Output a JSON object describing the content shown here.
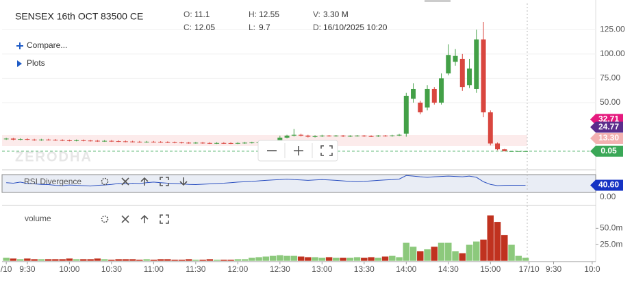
{
  "header": {
    "stats": [
      {
        "key": "O:",
        "value": 11.1
      },
      {
        "key": "C:",
        "value": 12.05
      },
      {
        "key": "H:",
        "value": 12.55
      },
      {
        "key": "L:",
        "value": 9.7
      },
      {
        "key": "V:",
        "value": "3.30 M"
      },
      {
        "key": "D:",
        "value": "16/10/2025 10:20"
      }
    ],
    "compare": "Compare...",
    "plots": "Plots",
    "axis_zero": "0.00"
  },
  "chart_data": [
    {
      "type": "candlestick",
      "title": "SENSEX 16th OCT 83500 CE",
      "watermark": "ZERODHA",
      "up_color": "#43a047",
      "down_color": "#d9463f",
      "x": [
        0,
        1,
        2,
        3,
        4,
        5,
        6,
        7,
        8,
        9,
        10,
        11,
        12,
        13,
        14,
        15,
        16,
        17,
        18,
        19,
        20,
        21,
        22,
        23,
        24,
        25,
        26,
        27,
        28,
        29,
        30,
        31,
        32,
        33,
        34,
        35,
        36,
        37,
        38,
        39,
        40,
        41,
        42,
        43,
        44,
        45,
        46,
        47,
        48,
        49,
        50,
        51,
        52,
        53,
        54,
        55,
        56,
        57,
        58,
        59,
        60,
        61,
        62,
        63,
        64,
        65,
        66,
        67,
        68,
        69,
        70,
        71,
        72,
        73,
        74
      ],
      "open": [
        12.5,
        13,
        12,
        12.5,
        12,
        11.5,
        12,
        11.8,
        11.5,
        11.2,
        11,
        11.3,
        11,
        10.8,
        10.5,
        10.7,
        10.4,
        10.2,
        10,
        9.8,
        9.5,
        9.8,
        9.6,
        9.4,
        9.2,
        9,
        8.8,
        8.6,
        8.8,
        8.5,
        8.3,
        8.5,
        8.4,
        8.2,
        8.5,
        8.8,
        9,
        9.2,
        9.5,
        9.8,
        14,
        16,
        17,
        16,
        15,
        15.5,
        16,
        15.8,
        16,
        15.5,
        15.8,
        16,
        15.6,
        15.5,
        16,
        15.8,
        16.2,
        18,
        54,
        50,
        45,
        64,
        50,
        80,
        92,
        95,
        68,
        64,
        115,
        40,
        8,
        2,
        0.05,
        0.05,
        0.05
      ],
      "high": [
        13.8,
        13.8,
        13.3,
        13.3,
        12.8,
        12.8,
        12.8,
        12.6,
        12.3,
        12,
        12.1,
        12.1,
        11.8,
        11.6,
        11.5,
        11.5,
        11.2,
        11,
        10.8,
        10.6,
        10.6,
        10.6,
        10.4,
        10.2,
        10,
        9.8,
        9.6,
        9.6,
        9.6,
        9.3,
        9.3,
        9.3,
        9.2,
        9.3,
        9.6,
        9.8,
        10,
        10.3,
        10.6,
        16,
        17,
        23,
        18,
        17,
        16.5,
        17,
        16.8,
        16.8,
        16.8,
        16.6,
        16.8,
        16.8,
        16.4,
        16.8,
        16.8,
        17,
        17.8,
        60,
        70,
        52,
        68,
        66,
        80,
        110,
        105,
        100,
        95,
        125,
        133,
        42,
        9,
        2.5,
        0.1,
        0.1,
        0.1
      ],
      "low": [
        11.7,
        11.2,
        11.2,
        11.2,
        10.7,
        10.7,
        11,
        10.7,
        10.4,
        10.2,
        10.2,
        10.2,
        10,
        9.7,
        9.7,
        9.6,
        9.4,
        9.2,
        9,
        8.7,
        8.7,
        8.8,
        8.6,
        8.4,
        8.2,
        8,
        7.8,
        7.8,
        7.7,
        7.5,
        7.5,
        7.6,
        7.4,
        7.4,
        7.7,
        8,
        8.2,
        8.4,
        8.7,
        9,
        13.2,
        15.2,
        15.2,
        14.2,
        14.2,
        14.7,
        15,
        15,
        14.7,
        14.7,
        15,
        14.8,
        14.7,
        14.7,
        15,
        15,
        15.4,
        15,
        50,
        38,
        42,
        48,
        48,
        78,
        88,
        62,
        65,
        60,
        35,
        6,
        1,
        0.05,
        0.05,
        0.05,
        0.05
      ],
      "close": [
        13,
        12,
        12.5,
        12,
        11.5,
        12,
        11.8,
        11.5,
        11.2,
        11,
        11.3,
        11,
        10.8,
        10.5,
        10.7,
        10.4,
        10.2,
        10,
        9.8,
        9.5,
        9.8,
        9.6,
        9.4,
        9.2,
        9,
        8.8,
        8.6,
        8.8,
        8.5,
        8.3,
        8.5,
        8.4,
        8.2,
        8.5,
        8.8,
        9,
        9.2,
        9.5,
        9.8,
        14,
        16,
        17,
        16,
        15,
        15.5,
        16,
        15.8,
        16,
        15.5,
        15.8,
        16,
        15.6,
        15.5,
        16,
        15.8,
        16.2,
        17,
        57,
        64,
        40,
        64,
        50,
        75,
        99,
        98,
        66,
        85,
        115,
        40,
        8,
        2,
        0.05,
        0.05,
        0.05,
        0.05
      ],
      "xlim": [
        -0.6,
        84
      ],
      "xticks": [
        {
          "value": 0,
          "label": "/10"
        },
        {
          "value": 3,
          "label": "9:30"
        },
        {
          "value": 9,
          "label": "10:00"
        },
        {
          "value": 15,
          "label": "10:30"
        },
        {
          "value": 21,
          "label": "11:00"
        },
        {
          "value": 27,
          "label": "11:30"
        },
        {
          "value": 33,
          "label": "12:00"
        },
        {
          "value": 39,
          "label": "12:30"
        },
        {
          "value": 45,
          "label": "13:00"
        },
        {
          "value": 51,
          "label": "13:30"
        },
        {
          "value": 57,
          "label": "14:00"
        },
        {
          "value": 63,
          "label": "14:30"
        },
        {
          "value": 69,
          "label": "15:00"
        },
        {
          "value": 74.5,
          "label": "17/10"
        },
        {
          "value": 78,
          "label": "9:30"
        },
        {
          "value": 83.5,
          "label": "10:0"
        }
      ],
      "ylim": [
        -17,
        152
      ],
      "yticks": [
        {
          "value": 125,
          "label": "125.00"
        },
        {
          "value": 100,
          "label": "100.00"
        },
        {
          "value": 75,
          "label": "75.00"
        },
        {
          "value": 50,
          "label": "50.00"
        }
      ],
      "grid": true,
      "price_flags": [
        {
          "value": 32.71,
          "label": "32.71",
          "color": "#e5197e"
        },
        {
          "value": 13.3,
          "label": "13.30",
          "color": "#f3b1b1"
        },
        {
          "value": 24.77,
          "label": "24.77",
          "color": "#5b2d8c"
        },
        {
          "value": 0.05,
          "label": "0.05",
          "color": "#3aa757",
          "dashed": true
        }
      ]
    },
    {
      "type": "line",
      "name": "RSI Divergence",
      "color": "#2a4fc0",
      "values": [
        55,
        52,
        58,
        50,
        48,
        45,
        44,
        40,
        38,
        42,
        40,
        38,
        36,
        40,
        42,
        45,
        50,
        48,
        52,
        50,
        55,
        58,
        55,
        52,
        50,
        48,
        45,
        44,
        46,
        48,
        50,
        52,
        55,
        58,
        60,
        62,
        65,
        68,
        70,
        72,
        75,
        72,
        70,
        68,
        70,
        72,
        70,
        68,
        65,
        62,
        60,
        62,
        65,
        68,
        70,
        72,
        75,
        95,
        92,
        88,
        85,
        88,
        90,
        92,
        90,
        88,
        92,
        85,
        60,
        45,
        38,
        40,
        40.6,
        40.6,
        40.6
      ],
      "ylim": [
        0,
        100
      ],
      "last_flag": {
        "value": 40.6,
        "label": "40.60",
        "color": "#1533c4"
      }
    },
    {
      "type": "bar",
      "name": "volume",
      "up_color": "#8cc97c",
      "down_color": "#c0321f",
      "values": [
        5,
        4,
        3,
        4,
        3,
        3,
        3,
        3,
        3,
        4,
        3,
        3,
        3,
        4,
        3,
        2,
        3,
        3,
        3,
        2,
        3,
        2,
        3,
        3,
        2,
        2,
        3,
        2,
        2,
        3,
        2,
        2,
        2,
        3,
        3,
        5,
        6,
        7,
        8,
        9,
        8,
        8,
        7,
        6,
        6,
        5,
        6,
        5,
        5,
        5,
        6,
        5,
        6,
        5,
        7,
        8,
        6,
        28,
        22,
        15,
        18,
        22,
        28,
        28,
        15,
        12,
        25,
        30,
        33,
        70,
        60,
        40,
        25,
        8,
        5
      ],
      "ylim": [
        0,
        85
      ],
      "yticks": [
        {
          "value": 50,
          "label": "50.0m"
        },
        {
          "value": 25,
          "label": "25.0m"
        }
      ]
    }
  ]
}
